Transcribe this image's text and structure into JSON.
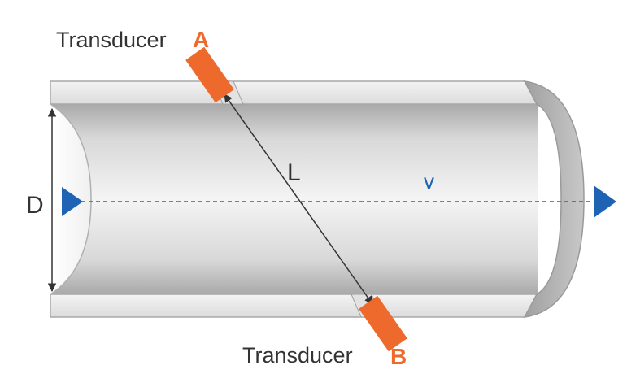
{
  "transducer_a": {
    "word": "Transducer",
    "letter": "A"
  },
  "transducer_b": {
    "word": "Transducer",
    "letter": "B"
  },
  "labels": {
    "path_length": "L",
    "diameter": "D",
    "velocity": "v"
  },
  "colors": {
    "transducer": "#ee6a2c",
    "flow_arrow": "#1f64b4",
    "text": "#333333",
    "pipe_light": "#f2f2f2",
    "pipe_dark": "#b8b8b8",
    "pipe_rim": "#8f8f8f"
  },
  "icons": {
    "flow_in": "triangle-right-icon",
    "flow_out": "triangle-right-icon"
  }
}
